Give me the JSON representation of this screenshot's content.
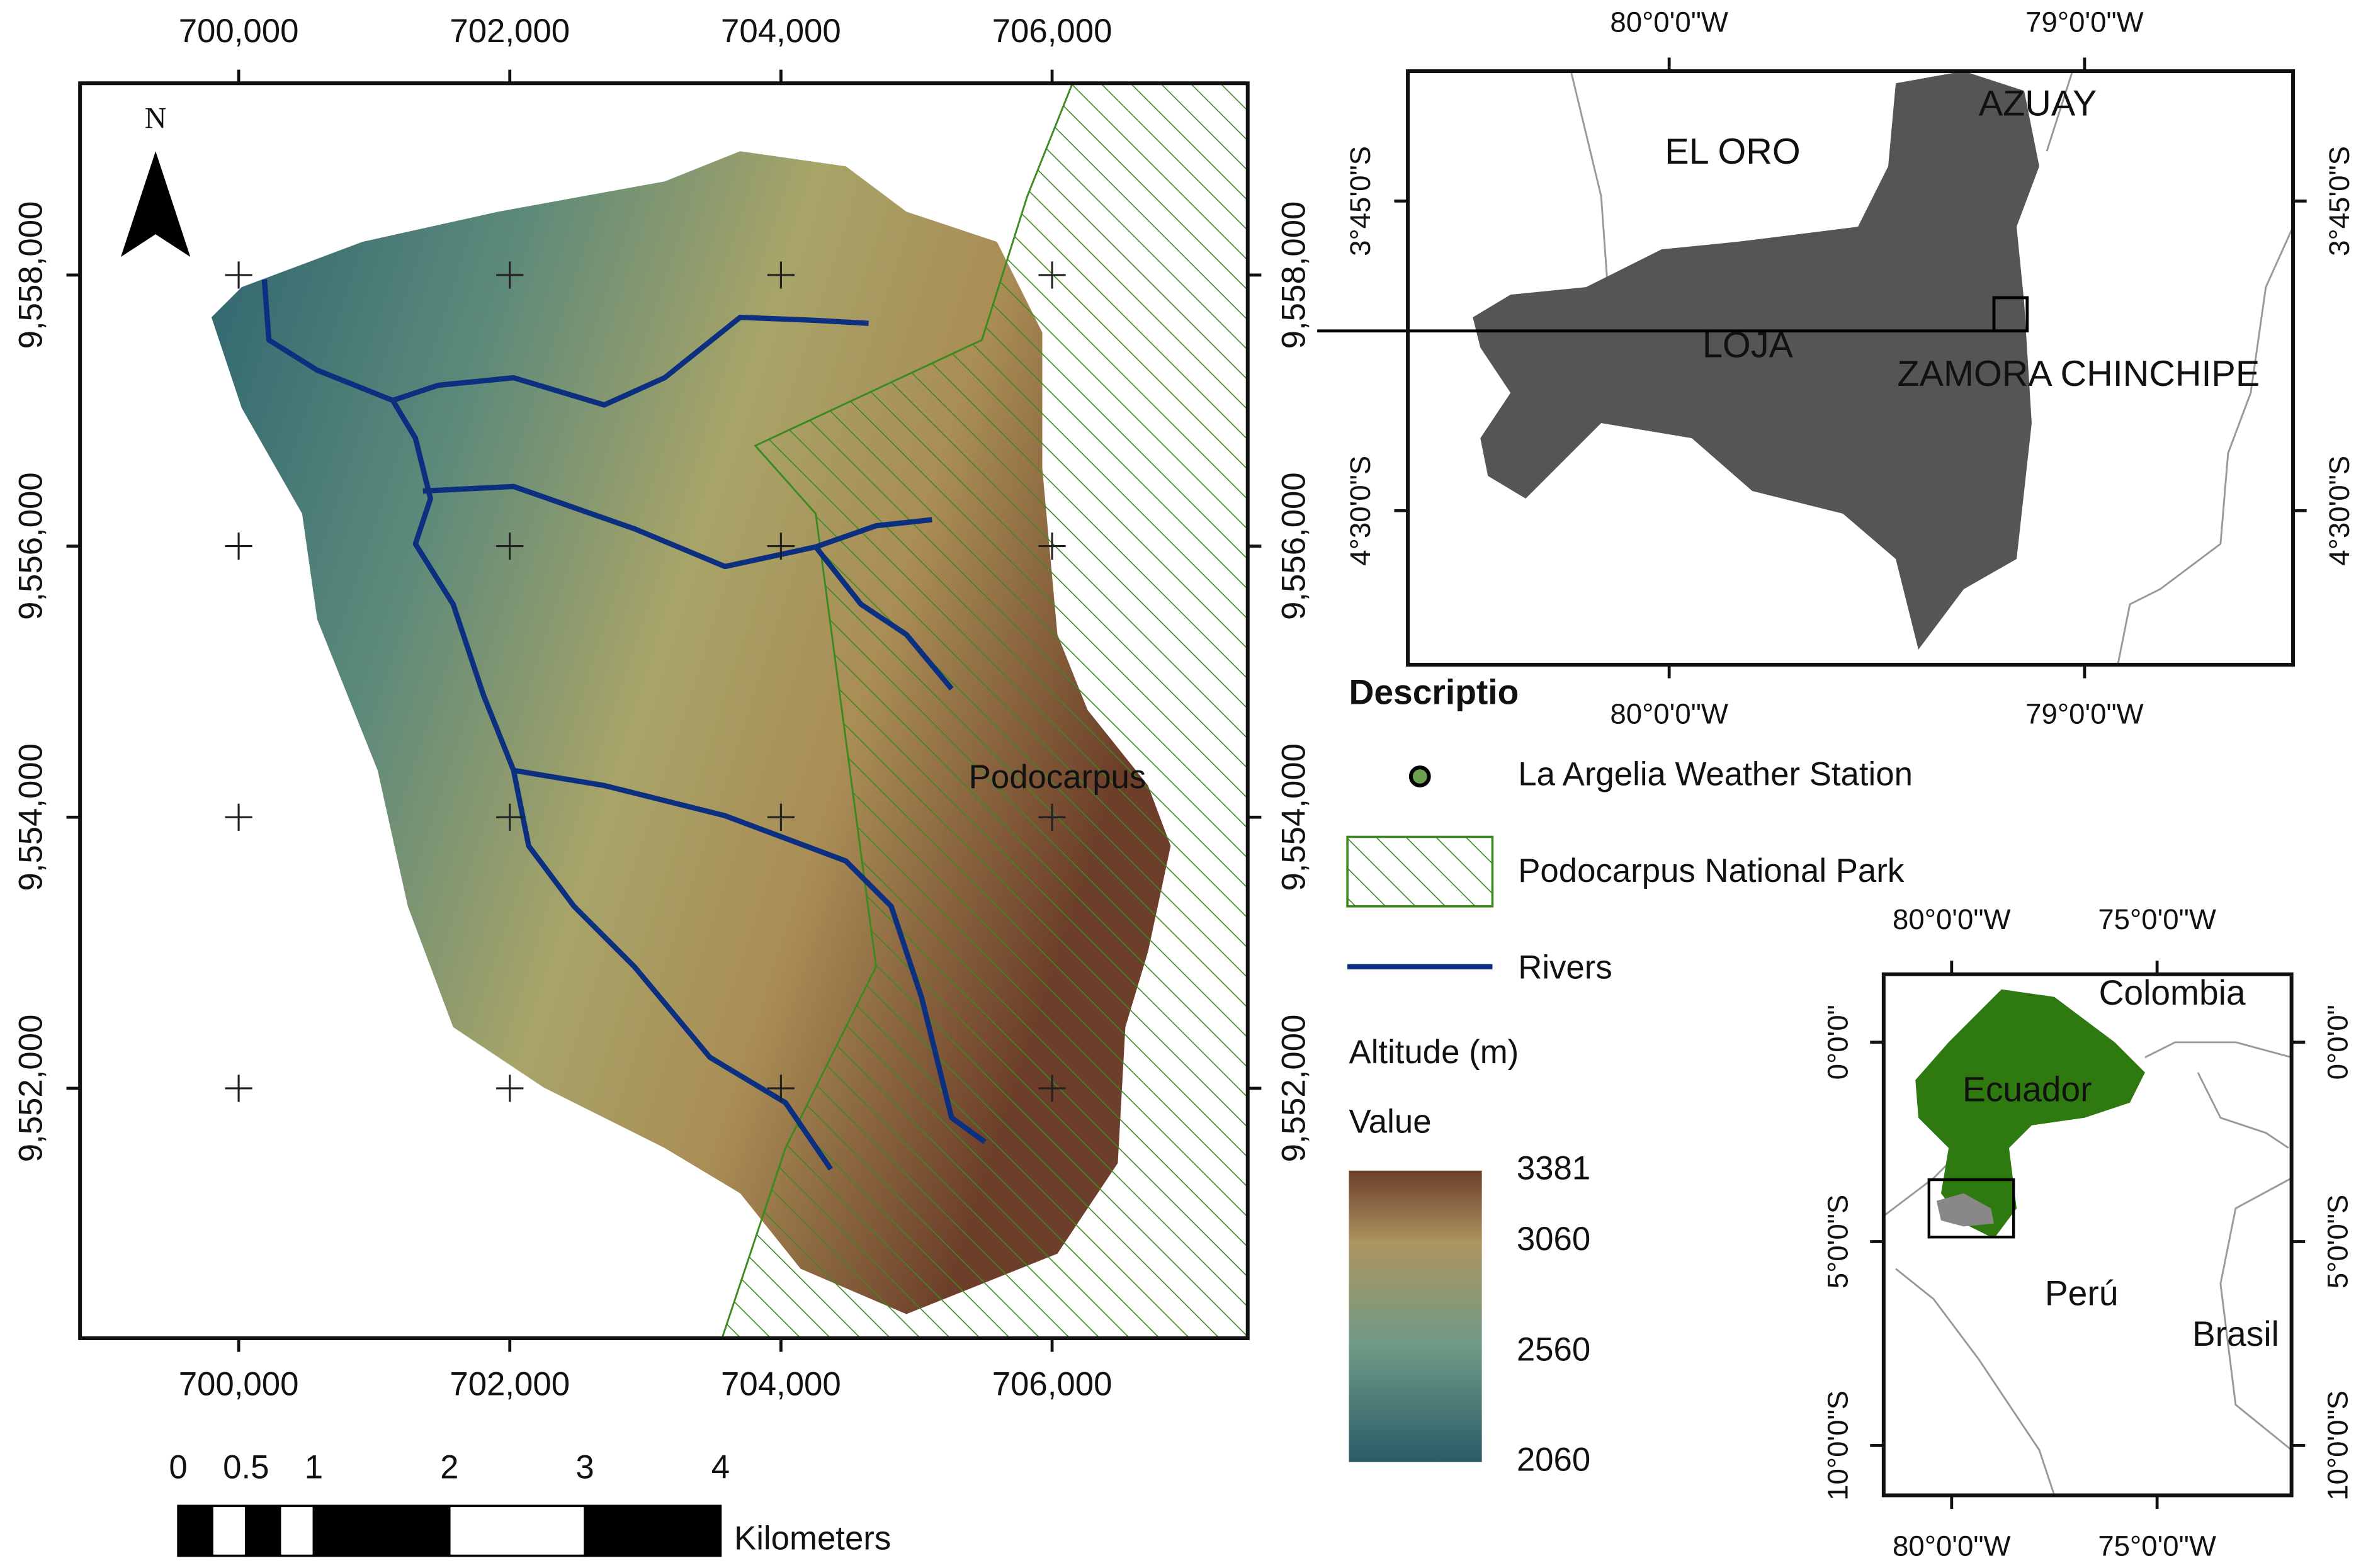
{
  "main_map": {
    "north": "N",
    "park_label": "Podocarpus",
    "xticks": [
      {
        "value": 700000,
        "label": "700,000"
      },
      {
        "value": 702000,
        "label": "702,000"
      },
      {
        "value": 704000,
        "label": "704,000"
      },
      {
        "value": 706000,
        "label": "706,000"
      }
    ],
    "yticks": [
      {
        "value": 9558000,
        "label": "9,558,000"
      },
      {
        "value": 9556000,
        "label": "9,556,000"
      },
      {
        "value": 9554000,
        "label": "9,554,000"
      },
      {
        "value": 9552000,
        "label": "9,552,000"
      }
    ]
  },
  "scale_bar": {
    "ticks": [
      0,
      0.5,
      1,
      2,
      3,
      4
    ],
    "unit": "Kilometers"
  },
  "locator_provinces": {
    "lon_ticks": [
      "80°0'0\"W",
      "79°0'0\"W"
    ],
    "lat_ticks": [
      "3°45'0\"S",
      "4°30'0\"S"
    ],
    "labels": [
      "EL ORO",
      "AZUAY",
      "LOJA",
      "ZAMORA CHINCHIPE"
    ]
  },
  "legend": {
    "title": "Descriptio",
    "items": [
      "La Argelia Weather Station",
      "Podocarpus National Park",
      "Rivers"
    ],
    "altitude_title": "Altitude (m)",
    "value_title": "Value",
    "altitude_ticks": [
      3381,
      3060,
      2560,
      2060
    ]
  },
  "locator_country": {
    "lon_ticks": [
      "80°0'0\"W",
      "75°0'0\"W"
    ],
    "lat_ticks": [
      "0°0'0\"",
      "5°0'0\"S",
      "10°0'0\"S"
    ],
    "labels": [
      "Colombia",
      "Ecuador",
      "Perú",
      "Brasil"
    ]
  }
}
